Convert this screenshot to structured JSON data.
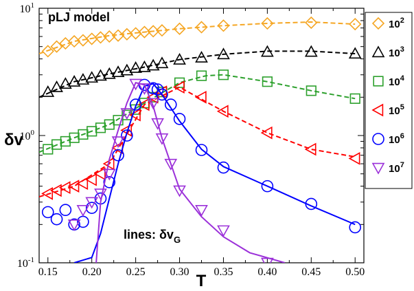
{
  "chart_data": {
    "type": "scatter",
    "title": "",
    "xlabel": "T",
    "ylabel": "δv",
    "yscale": "log",
    "xlim": [
      0.14,
      0.51
    ],
    "ylim": [
      0.1,
      10
    ],
    "xticks": [
      "0.15",
      "0.20",
      "0.25",
      "0.30",
      "0.35",
      "0.40",
      "0.45",
      "0.50"
    ],
    "yticks": [
      {
        "base": "10",
        "exp": "-1",
        "value": 0.1
      },
      {
        "base": "10",
        "exp": "0",
        "value": 1
      },
      {
        "base": "10",
        "exp": "1",
        "value": 10
      }
    ],
    "annotations": {
      "model": "pLJ model",
      "lines_prefix": "lines: δv",
      "lines_sub": "G"
    },
    "legend": {
      "position": "top-right"
    },
    "series": [
      {
        "name_base": "10",
        "name_exp": "2",
        "color": "#f5a623",
        "marker": "diamond",
        "line_style": "dashed",
        "points": [
          [
            0.15,
            4.6
          ],
          [
            0.16,
            5.0
          ],
          [
            0.17,
            5.3
          ],
          [
            0.18,
            5.5
          ],
          [
            0.19,
            5.6
          ],
          [
            0.2,
            5.75
          ],
          [
            0.21,
            5.9
          ],
          [
            0.22,
            6.0
          ],
          [
            0.23,
            6.1
          ],
          [
            0.24,
            6.25
          ],
          [
            0.25,
            6.35
          ],
          [
            0.26,
            6.5
          ],
          [
            0.27,
            6.6
          ],
          [
            0.28,
            6.7
          ],
          [
            0.3,
            6.9
          ],
          [
            0.325,
            7.1
          ],
          [
            0.35,
            7.3
          ],
          [
            0.4,
            7.6
          ],
          [
            0.45,
            7.7
          ],
          [
            0.5,
            7.5
          ]
        ],
        "line": [
          [
            0.14,
            4.4
          ],
          [
            0.18,
            5.5
          ],
          [
            0.22,
            6.1
          ],
          [
            0.26,
            6.5
          ],
          [
            0.3,
            6.9
          ],
          [
            0.35,
            7.3
          ],
          [
            0.4,
            7.6
          ],
          [
            0.45,
            7.8
          ],
          [
            0.5,
            7.5
          ]
        ]
      },
      {
        "name_base": "10",
        "name_exp": "3",
        "color": "#000000",
        "marker": "triangle-up",
        "line_style": "dashed",
        "points": [
          [
            0.15,
            2.2
          ],
          [
            0.16,
            2.4
          ],
          [
            0.17,
            2.55
          ],
          [
            0.18,
            2.65
          ],
          [
            0.19,
            2.75
          ],
          [
            0.2,
            2.85
          ],
          [
            0.21,
            2.95
          ],
          [
            0.22,
            3.05
          ],
          [
            0.23,
            3.15
          ],
          [
            0.24,
            3.25
          ],
          [
            0.25,
            3.4
          ],
          [
            0.26,
            3.45
          ],
          [
            0.27,
            3.55
          ],
          [
            0.28,
            3.7
          ],
          [
            0.3,
            3.95
          ],
          [
            0.325,
            4.1
          ],
          [
            0.35,
            4.35
          ],
          [
            0.4,
            4.55
          ],
          [
            0.45,
            4.55
          ],
          [
            0.5,
            4.4
          ]
        ],
        "line": [
          [
            0.14,
            2.0
          ],
          [
            0.18,
            2.65
          ],
          [
            0.22,
            3.05
          ],
          [
            0.26,
            3.45
          ],
          [
            0.3,
            3.95
          ],
          [
            0.35,
            4.35
          ],
          [
            0.4,
            4.6
          ],
          [
            0.45,
            4.6
          ],
          [
            0.5,
            4.4
          ]
        ]
      },
      {
        "name_base": "10",
        "name_exp": "4",
        "color": "#2ca02c",
        "marker": "square",
        "line_style": "dashed",
        "points": [
          [
            0.15,
            0.78
          ],
          [
            0.16,
            0.85
          ],
          [
            0.17,
            0.9
          ],
          [
            0.18,
            0.96
          ],
          [
            0.19,
            1.02
          ],
          [
            0.2,
            1.08
          ],
          [
            0.21,
            1.15
          ],
          [
            0.22,
            1.22
          ],
          [
            0.23,
            1.32
          ],
          [
            0.24,
            1.45
          ],
          [
            0.25,
            1.6
          ],
          [
            0.26,
            1.8
          ],
          [
            0.27,
            2.0
          ],
          [
            0.28,
            2.2
          ],
          [
            0.3,
            2.6
          ],
          [
            0.325,
            2.95
          ],
          [
            0.35,
            3.0
          ],
          [
            0.4,
            2.65
          ],
          [
            0.45,
            2.25
          ],
          [
            0.5,
            1.95
          ]
        ],
        "line": [
          [
            0.14,
            0.74
          ],
          [
            0.18,
            0.96
          ],
          [
            0.22,
            1.22
          ],
          [
            0.26,
            1.8
          ],
          [
            0.3,
            2.6
          ],
          [
            0.33,
            2.95
          ],
          [
            0.35,
            3.0
          ],
          [
            0.4,
            2.65
          ],
          [
            0.45,
            2.25
          ],
          [
            0.5,
            1.95
          ]
        ]
      },
      {
        "name_base": "10",
        "name_exp": "5",
        "color": "#ff0000",
        "marker": "triangle-left",
        "line_style": "dashed",
        "points": [
          [
            0.15,
            0.35
          ],
          [
            0.16,
            0.37
          ],
          [
            0.17,
            0.39
          ],
          [
            0.18,
            0.4
          ],
          [
            0.19,
            0.42
          ],
          [
            0.2,
            0.45
          ],
          [
            0.21,
            0.5
          ],
          [
            0.22,
            0.6
          ],
          [
            0.23,
            0.8
          ],
          [
            0.24,
            1.1
          ],
          [
            0.25,
            1.45
          ],
          [
            0.26,
            1.75
          ],
          [
            0.27,
            2.0
          ],
          [
            0.28,
            2.2
          ],
          [
            0.3,
            2.4
          ],
          [
            0.325,
            2.0
          ],
          [
            0.35,
            1.55
          ],
          [
            0.4,
            1.05
          ],
          [
            0.45,
            0.78
          ],
          [
            0.5,
            0.66
          ]
        ],
        "line": [
          [
            0.14,
            0.33
          ],
          [
            0.18,
            0.4
          ],
          [
            0.22,
            0.6
          ],
          [
            0.26,
            1.75
          ],
          [
            0.3,
            2.4
          ],
          [
            0.35,
            1.55
          ],
          [
            0.4,
            1.05
          ],
          [
            0.45,
            0.78
          ],
          [
            0.5,
            0.68
          ]
        ]
      },
      {
        "name_base": "10",
        "name_exp": "6",
        "color": "#0000ff",
        "marker": "circle",
        "line_style": "solid",
        "points": [
          [
            0.15,
            0.25
          ],
          [
            0.16,
            0.22
          ],
          [
            0.17,
            0.26
          ],
          [
            0.18,
            0.2
          ],
          [
            0.19,
            0.21
          ],
          [
            0.2,
            0.27
          ],
          [
            0.21,
            0.32
          ],
          [
            0.22,
            0.43
          ],
          [
            0.23,
            0.7
          ],
          [
            0.24,
            1.0
          ],
          [
            0.25,
            1.75
          ],
          [
            0.26,
            2.5
          ],
          [
            0.27,
            2.35
          ],
          [
            0.275,
            2.3
          ],
          [
            0.28,
            2.1
          ],
          [
            0.29,
            1.75
          ],
          [
            0.3,
            1.35
          ],
          [
            0.325,
            0.77
          ],
          [
            0.35,
            0.56
          ],
          [
            0.4,
            0.4
          ],
          [
            0.45,
            0.29
          ],
          [
            0.5,
            0.19
          ]
        ],
        "line": [
          [
            0.18,
            0.1
          ],
          [
            0.2,
            0.11
          ],
          [
            0.21,
            0.17
          ],
          [
            0.22,
            0.32
          ],
          [
            0.23,
            0.6
          ],
          [
            0.24,
            1.05
          ],
          [
            0.25,
            1.7
          ],
          [
            0.26,
            2.45
          ],
          [
            0.27,
            2.55
          ],
          [
            0.28,
            2.1
          ],
          [
            0.29,
            1.65
          ],
          [
            0.3,
            1.3
          ],
          [
            0.325,
            0.78
          ],
          [
            0.35,
            0.57
          ],
          [
            0.4,
            0.4
          ],
          [
            0.45,
            0.28
          ],
          [
            0.5,
            0.2
          ]
        ]
      },
      {
        "name_base": "10",
        "name_exp": "7",
        "color": "#9b30d9",
        "marker": "triangle-down",
        "line_style": "solid",
        "points": [
          [
            0.18,
            0.2
          ],
          [
            0.19,
            0.26
          ],
          [
            0.2,
            0.3
          ],
          [
            0.21,
            0.35
          ],
          [
            0.22,
            0.5
          ],
          [
            0.23,
            0.9
          ],
          [
            0.24,
            1.5
          ],
          [
            0.25,
            2.55
          ],
          [
            0.26,
            2.35
          ],
          [
            0.27,
            1.8
          ],
          [
            0.275,
            1.25
          ],
          [
            0.28,
            0.95
          ],
          [
            0.29,
            0.6
          ],
          [
            0.3,
            0.37
          ],
          [
            0.325,
            0.26
          ],
          [
            0.35,
            0.18
          ],
          [
            0.4,
            0.1
          ]
        ],
        "line": [
          [
            0.205,
            0.1
          ],
          [
            0.21,
            0.3
          ],
          [
            0.22,
            0.65
          ],
          [
            0.23,
            1.1
          ],
          [
            0.24,
            1.8
          ],
          [
            0.25,
            2.6
          ],
          [
            0.26,
            2.5
          ],
          [
            0.27,
            1.7
          ],
          [
            0.28,
            0.95
          ],
          [
            0.3,
            0.38
          ],
          [
            0.325,
            0.23
          ],
          [
            0.35,
            0.16
          ],
          [
            0.38,
            0.12
          ],
          [
            0.42,
            0.1
          ]
        ]
      }
    ]
  }
}
